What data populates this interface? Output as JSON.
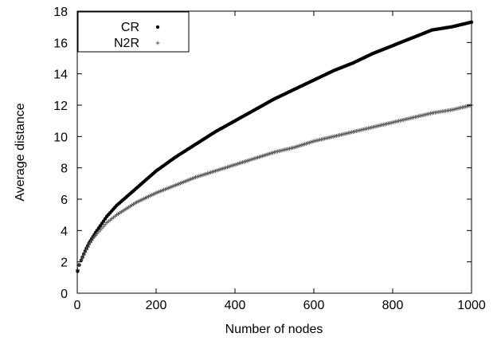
{
  "chart_data": {
    "type": "scatter",
    "xlabel": "Number of nodes",
    "ylabel": "Average distance",
    "xlim": [
      0,
      1000
    ],
    "ylim": [
      0,
      18
    ],
    "x_ticks": [
      "0",
      "200",
      "400",
      "600",
      "800",
      "1000"
    ],
    "y_ticks": [
      "0",
      "2",
      "4",
      "6",
      "8",
      "10",
      "12",
      "14",
      "16",
      "18"
    ],
    "grid": false,
    "legend_position": "top-left",
    "series": [
      {
        "name": "CR",
        "marker": "dot",
        "color": "#000000",
        "x": [
          1,
          5,
          10,
          20,
          30,
          40,
          50,
          75,
          100,
          150,
          200,
          250,
          300,
          350,
          400,
          450,
          500,
          550,
          600,
          650,
          700,
          750,
          800,
          850,
          900,
          950,
          1000
        ],
        "y": [
          1.4,
          1.8,
          2.1,
          2.7,
          3.2,
          3.6,
          4.0,
          4.9,
          5.6,
          6.7,
          7.8,
          8.7,
          9.5,
          10.3,
          11.0,
          11.7,
          12.4,
          13.0,
          13.6,
          14.2,
          14.7,
          15.3,
          15.8,
          16.3,
          16.8,
          17.0,
          17.3
        ]
      },
      {
        "name": "N2R",
        "marker": "plus",
        "color": "#555555",
        "x": [
          1,
          5,
          10,
          20,
          30,
          40,
          50,
          75,
          100,
          150,
          200,
          250,
          300,
          350,
          400,
          450,
          500,
          550,
          600,
          650,
          700,
          750,
          800,
          850,
          900,
          950,
          1000
        ],
        "y": [
          1.5,
          1.8,
          2.1,
          2.6,
          3.1,
          3.5,
          3.8,
          4.5,
          5.0,
          5.8,
          6.4,
          6.9,
          7.4,
          7.8,
          8.2,
          8.6,
          9.0,
          9.3,
          9.7,
          10.0,
          10.3,
          10.6,
          10.9,
          11.2,
          11.5,
          11.7,
          12.0
        ]
      }
    ]
  }
}
